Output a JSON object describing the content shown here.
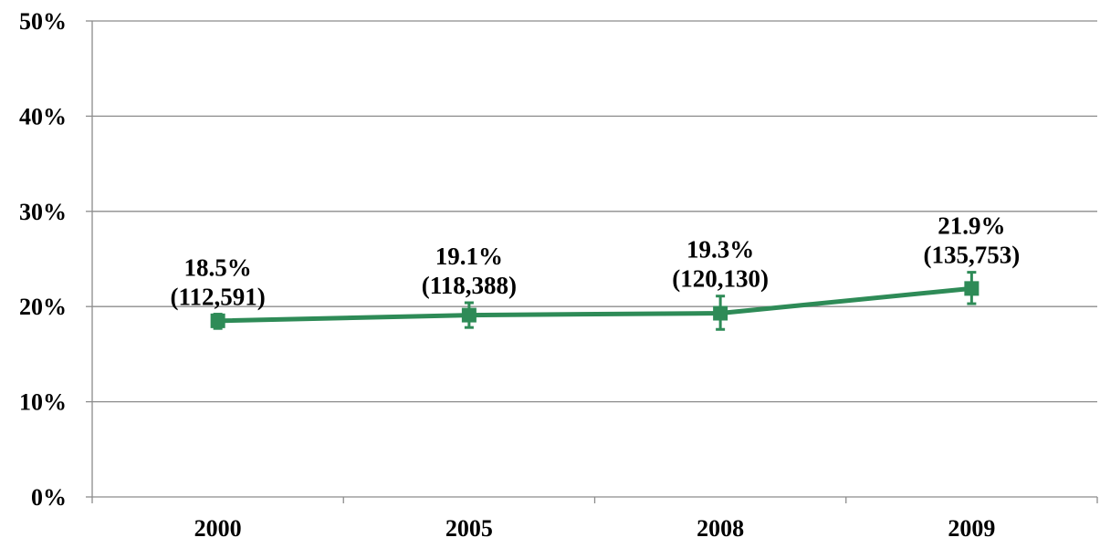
{
  "chart_data": {
    "type": "line",
    "title": "",
    "xlabel": "",
    "ylabel": "",
    "categories": [
      "2000",
      "2005",
      "2008",
      "2009"
    ],
    "ylim": [
      0,
      50
    ],
    "yticks": [
      0,
      10,
      20,
      30,
      40,
      50
    ],
    "ytick_labels": [
      "0%",
      "10%",
      "20%",
      "30%",
      "40%",
      "50%"
    ],
    "grid": true,
    "legend": "none",
    "series": [
      {
        "values": [
          18.5,
          19.1,
          19.3,
          21.9
        ],
        "error_low": [
          17.7,
          17.8,
          17.6,
          20.3
        ],
        "error_high": [
          19.2,
          20.4,
          21.1,
          23.6
        ],
        "color": "#2e8b57",
        "marker": "square",
        "labels": [
          [
            "18.5%",
            "(112,591)"
          ],
          [
            "19.1%",
            "(118,388)"
          ],
          [
            "19.3%",
            "(120,130)"
          ],
          [
            "21.9%",
            "(135,753)"
          ]
        ]
      }
    ]
  }
}
